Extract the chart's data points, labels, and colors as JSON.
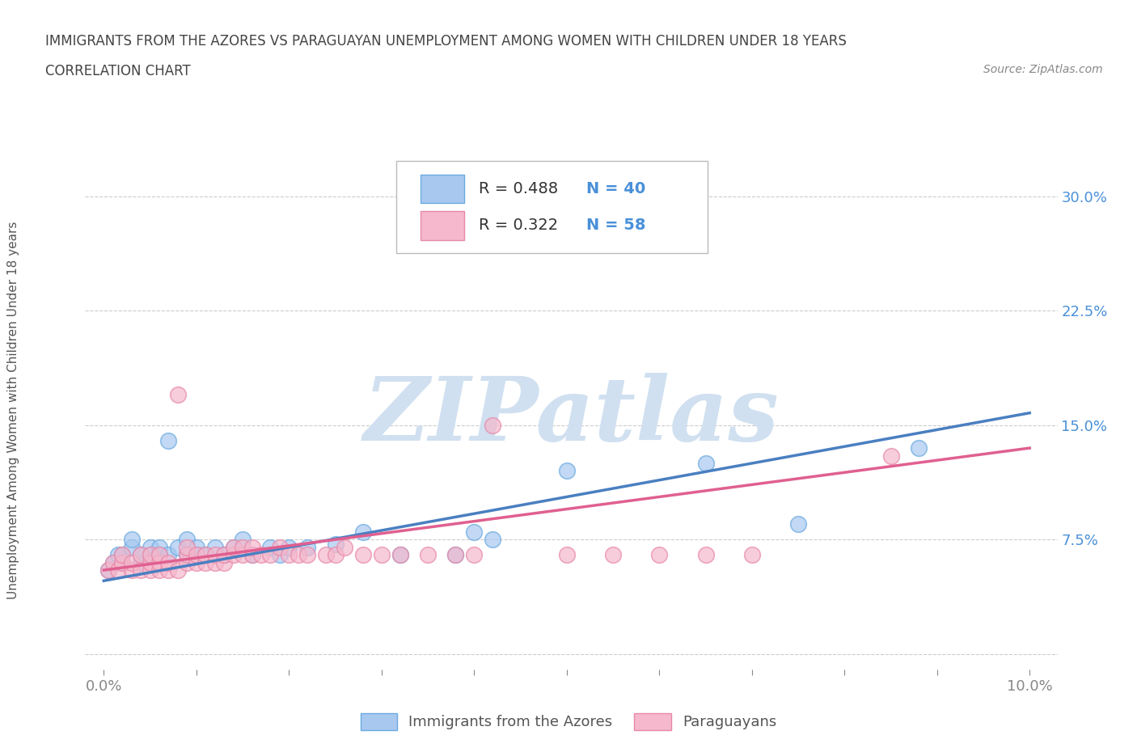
{
  "title_line1": "IMMIGRANTS FROM THE AZORES VS PARAGUAYAN UNEMPLOYMENT AMONG WOMEN WITH CHILDREN UNDER 18 YEARS",
  "title_line2": "CORRELATION CHART",
  "source_text": "Source: ZipAtlas.com",
  "ylabel": "Unemployment Among Women with Children Under 18 years",
  "xlim": [
    -0.002,
    0.103
  ],
  "ylim": [
    -0.01,
    0.335
  ],
  "xticks": [
    0.0,
    0.01,
    0.02,
    0.03,
    0.04,
    0.05,
    0.06,
    0.07,
    0.08,
    0.09,
    0.1
  ],
  "yticks": [
    0.0,
    0.075,
    0.15,
    0.225,
    0.3
  ],
  "ytick_labels": [
    "",
    "7.5%",
    "15.0%",
    "22.5%",
    "30.0%"
  ],
  "series1_name": "Immigrants from the Azores",
  "series1_R": 0.488,
  "series1_N": 40,
  "series1_color": "#a8c8f0",
  "series1_edge_color": "#6aaae0",
  "series1_line_color": "#4a7fc1",
  "series2_name": "Paraguayans",
  "series2_R": 0.322,
  "series2_N": 58,
  "series2_color": "#f5b8cc",
  "series2_edge_color": "#e888a8",
  "series2_line_color": "#e06090",
  "watermark": "ZIPatlas",
  "watermark_color": "#d0e0f0",
  "background_color": "#ffffff",
  "grid_color": "#cccccc",
  "title_color": "#444444",
  "axis_label_color": "#4a90d9",
  "legend_R_color": "#333333",
  "legend_N_color": "#4a90d9",
  "series1_x": [
    0.0005,
    0.001,
    0.0015,
    0.002,
    0.002,
    0.003,
    0.003,
    0.004,
    0.004,
    0.005,
    0.005,
    0.006,
    0.006,
    0.007,
    0.007,
    0.008,
    0.009,
    0.009,
    0.01,
    0.01,
    0.011,
    0.012,
    0.013,
    0.014,
    0.015,
    0.016,
    0.018,
    0.019,
    0.02,
    0.022,
    0.025,
    0.028,
    0.032,
    0.038,
    0.04,
    0.042,
    0.05,
    0.065,
    0.075,
    0.088
  ],
  "series1_y": [
    0.055,
    0.06,
    0.065,
    0.06,
    0.065,
    0.07,
    0.075,
    0.06,
    0.065,
    0.065,
    0.07,
    0.065,
    0.07,
    0.065,
    0.14,
    0.07,
    0.065,
    0.075,
    0.065,
    0.07,
    0.065,
    0.07,
    0.065,
    0.07,
    0.075,
    0.065,
    0.07,
    0.065,
    0.07,
    0.07,
    0.072,
    0.08,
    0.065,
    0.065,
    0.08,
    0.075,
    0.12,
    0.125,
    0.085,
    0.135
  ],
  "series2_x": [
    0.0005,
    0.001,
    0.0015,
    0.002,
    0.002,
    0.003,
    0.003,
    0.004,
    0.004,
    0.005,
    0.005,
    0.005,
    0.006,
    0.006,
    0.006,
    0.007,
    0.007,
    0.008,
    0.008,
    0.009,
    0.009,
    0.009,
    0.01,
    0.01,
    0.011,
    0.011,
    0.012,
    0.012,
    0.013,
    0.013,
    0.014,
    0.014,
    0.015,
    0.015,
    0.016,
    0.016,
    0.017,
    0.018,
    0.019,
    0.02,
    0.021,
    0.022,
    0.024,
    0.025,
    0.026,
    0.028,
    0.03,
    0.032,
    0.035,
    0.038,
    0.04,
    0.042,
    0.05,
    0.055,
    0.06,
    0.065,
    0.07,
    0.085
  ],
  "series2_y": [
    0.055,
    0.06,
    0.055,
    0.06,
    0.065,
    0.055,
    0.06,
    0.055,
    0.065,
    0.055,
    0.06,
    0.065,
    0.055,
    0.06,
    0.065,
    0.055,
    0.06,
    0.055,
    0.17,
    0.06,
    0.065,
    0.07,
    0.06,
    0.065,
    0.06,
    0.065,
    0.06,
    0.065,
    0.06,
    0.065,
    0.065,
    0.07,
    0.065,
    0.07,
    0.065,
    0.07,
    0.065,
    0.065,
    0.07,
    0.065,
    0.065,
    0.065,
    0.065,
    0.065,
    0.07,
    0.065,
    0.065,
    0.065,
    0.065,
    0.065,
    0.065,
    0.15,
    0.065,
    0.065,
    0.065,
    0.065,
    0.065,
    0.13
  ],
  "trend1_x0": 0.0,
  "trend1_y0": 0.048,
  "trend1_x1": 0.1,
  "trend1_y1": 0.158,
  "trend2_x0": 0.0,
  "trend2_y0": 0.055,
  "trend2_x1": 0.1,
  "trend2_y1": 0.135
}
